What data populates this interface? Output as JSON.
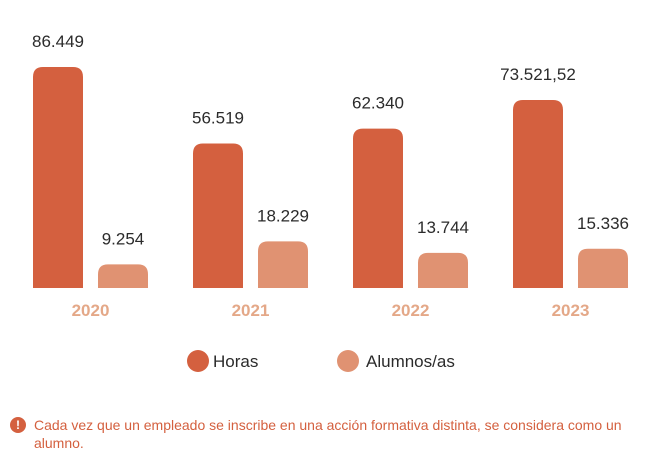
{
  "chart_data": {
    "type": "bar",
    "categories": [
      "2020",
      "2021",
      "2022",
      "2023"
    ],
    "series": [
      {
        "name": "Horas",
        "values": [
          86449,
          56519,
          62340,
          73521.52
        ],
        "labels": [
          "86.449",
          "56.519",
          "62.340",
          "73.521,52"
        ]
      },
      {
        "name": "Alumnos/as",
        "values": [
          9254,
          18229,
          13744,
          15336
        ],
        "labels": [
          "9.254",
          "18.229",
          "13.744",
          "15.336"
        ]
      }
    ],
    "legend_position": "bottom",
    "grid": false
  },
  "colors": {
    "horas": "#d4603f",
    "alumnos": "#e09272",
    "year_label": "#e4a888",
    "value_label": "#2b2b2b",
    "note": "#d4603f"
  },
  "note": {
    "icon": "info-icon",
    "icon_glyph": "!",
    "text": "Cada vez que un empleado se inscribe en una acción formativa distinta, se considera como un alumno."
  }
}
